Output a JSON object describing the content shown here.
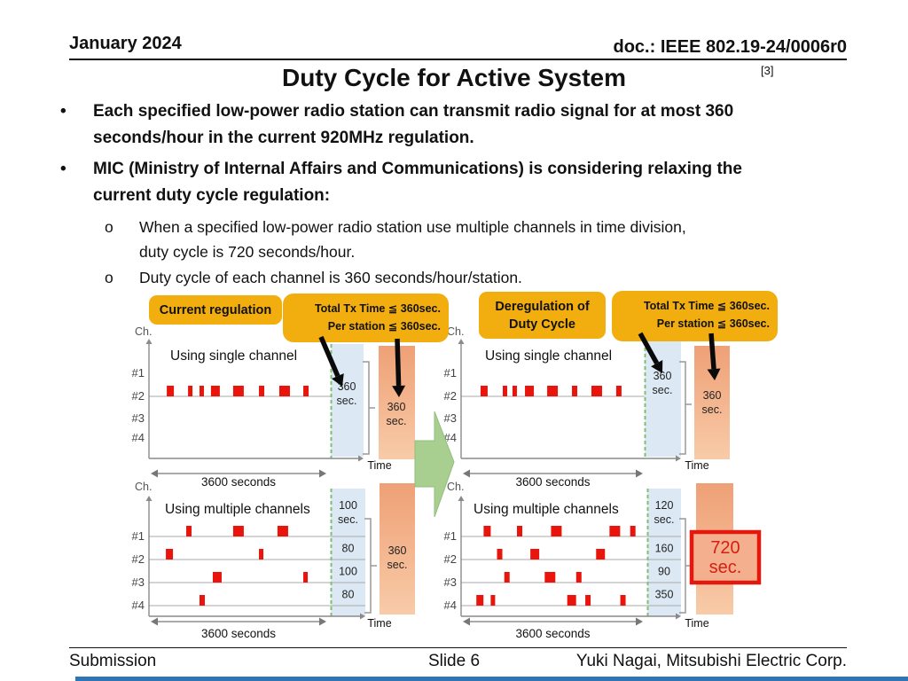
{
  "header": {
    "date": "January 2024",
    "doc": "doc.: IEEE 802.19-24/0006r0",
    "page_ref": "[3]",
    "title": "Duty Cycle for Active System"
  },
  "bullets": [
    {
      "marker": "•",
      "lines": [
        "Each specified low-power radio station can transmit radio signal for at most 360",
        "seconds/hour in the current 920MHz regulation."
      ]
    },
    {
      "marker": "•",
      "lines": [
        "MIC (Ministry of Internal Affairs and Communications) is considering relaxing the",
        "current duty cycle regulation:"
      ]
    }
  ],
  "sub_bullets": [
    {
      "marker": "o",
      "lines": [
        "When a specified low-power radio station use multiple channels in time division,",
        "duty cycle is 720 seconds/hour."
      ]
    },
    {
      "marker": "o",
      "lines": [
        "Duty cycle of each channel is 360 seconds/hour/station."
      ]
    }
  ],
  "diagram": {
    "left_tag": "Current regulation",
    "right_tag_lines": [
      "Deregulation of",
      "Duty Cycle"
    ],
    "callout_lines": [
      "Total Tx Time ≦ 360sec.",
      "Per station ≦ 360sec."
    ],
    "charts": {
      "left_top": {
        "axis_label": "Ch.",
        "title": "Using single channel",
        "channels": [
          "#1",
          "#2",
          "#3",
          "#4"
        ],
        "active_channel_index": 1,
        "pulses": [
          [
            0.098,
            8
          ],
          [
            0.215,
            5
          ],
          [
            0.278,
            5
          ],
          [
            0.341,
            10
          ],
          [
            0.463,
            12
          ],
          [
            0.605,
            6
          ],
          [
            0.717,
            12
          ],
          [
            0.849,
            6
          ]
        ],
        "duty_total_lines": [
          "360",
          "sec."
        ],
        "station_total_lines": [
          "360",
          "sec."
        ],
        "x_span_label": "3600 seconds",
        "time_label": "Time"
      },
      "left_bottom": {
        "axis_label": "Ch.",
        "title": "Using multiple channels",
        "channels": [
          "#1",
          "#2",
          "#3",
          "#4"
        ],
        "pulses_by_channel": [
          [
            [
              0.205,
              6
            ],
            [
              0.463,
              12
            ],
            [
              0.707,
              12
            ]
          ],
          [
            [
              0.093,
              8
            ],
            [
              0.605,
              5
            ]
          ],
          [
            [
              0.351,
              10
            ],
            [
              0.849,
              5
            ]
          ],
          [
            [
              0.278,
              6
            ]
          ]
        ],
        "segment_lines": [
          [
            "100",
            "sec."
          ],
          [
            "80"
          ],
          [
            "100"
          ],
          [
            "80"
          ]
        ],
        "station_total_lines": [
          "360",
          "sec."
        ],
        "x_span_label": "3600 seconds",
        "time_label": "Time"
      },
      "right_top": {
        "axis_label": "Ch.",
        "title": "Using single channel",
        "channels": [
          "#1",
          "#2",
          "#3",
          "#4"
        ],
        "active_channel_index": 1,
        "pulses": [
          [
            0.106,
            8
          ],
          [
            0.227,
            5
          ],
          [
            0.28,
            5
          ],
          [
            0.348,
            10
          ],
          [
            0.469,
            12
          ],
          [
            0.604,
            6
          ],
          [
            0.71,
            12
          ],
          [
            0.845,
            6
          ]
        ],
        "duty_total_lines": [
          "360",
          "sec."
        ],
        "station_total_lines": [
          "360",
          "sec."
        ],
        "x_span_label": "3600 seconds",
        "time_label": "Time"
      },
      "right_bottom": {
        "axis_label": "Ch.",
        "title": "Using multiple channels",
        "channels": [
          "#1",
          "#2",
          "#3",
          "#4"
        ],
        "pulses_by_channel": [
          [
            [
              0.121,
              8
            ],
            [
              0.3,
              6
            ],
            [
              0.483,
              12
            ],
            [
              0.797,
              12
            ],
            [
              0.908,
              6
            ]
          ],
          [
            [
              0.193,
              6
            ],
            [
              0.372,
              10
            ],
            [
              0.725,
              10
            ]
          ],
          [
            [
              0.232,
              6
            ],
            [
              0.449,
              12
            ],
            [
              0.618,
              6
            ]
          ],
          [
            [
              0.082,
              8
            ],
            [
              0.159,
              5
            ],
            [
              0.57,
              10
            ],
            [
              0.667,
              6
            ],
            [
              0.855,
              6
            ]
          ]
        ],
        "segment_lines": [
          [
            "120",
            "sec."
          ],
          [
            "160"
          ],
          [
            "90"
          ],
          [
            "350"
          ]
        ],
        "station_total_lines": [
          "720",
          "sec."
        ],
        "station_total_boxed": true,
        "x_span_label": "3600 seconds",
        "time_label": "Time"
      }
    }
  },
  "footer": {
    "left": "Submission",
    "center": "Slide 6",
    "right": "Yuki Nagai, Mitsubishi Electric Corp."
  },
  "colors": {
    "accent_yellow": "#F2AE0E",
    "pulse_red": "#E9150D",
    "duty_blue": "#DCE9F4",
    "total_orange_top": "#EFA076",
    "total_orange_bottom": "#F8CBA8",
    "dashed_green": "#7FBF6E",
    "transition_green": "#A9CF90",
    "highlight_red": "#E3180F",
    "highlight_text_red": "#D42014",
    "footer_bar_blue": "#2E75B6"
  }
}
